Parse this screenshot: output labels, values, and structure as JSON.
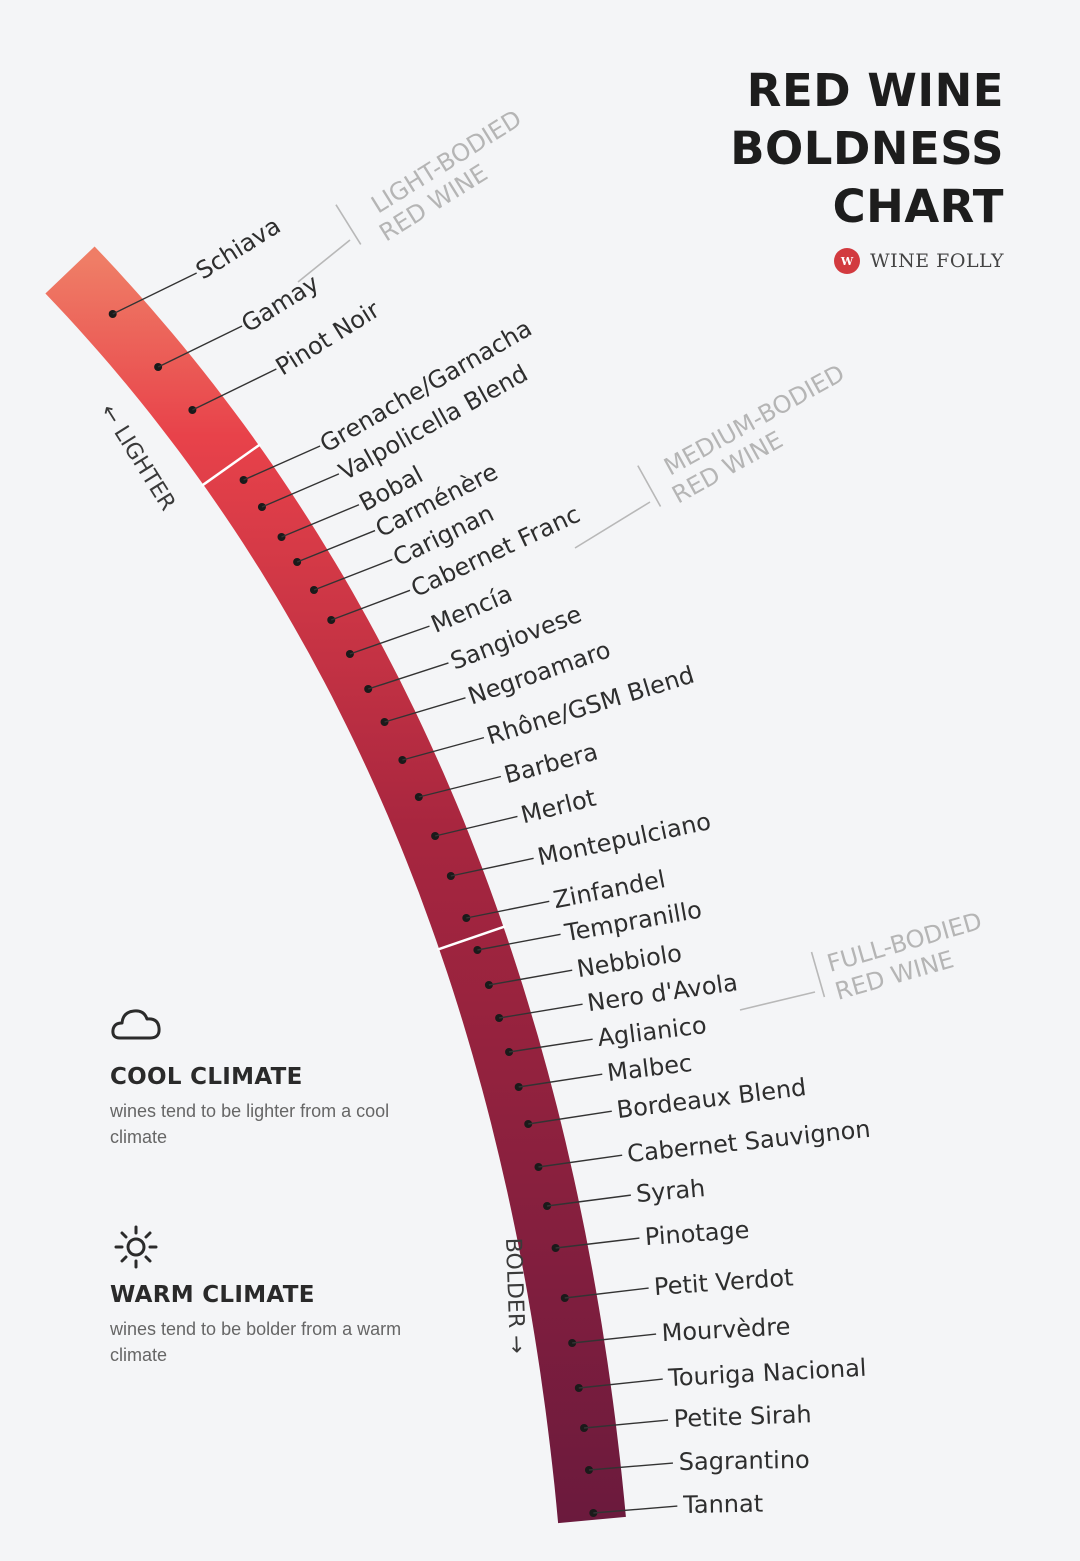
{
  "title": [
    "RED WINE",
    "BOLDNESS",
    "CHART"
  ],
  "brand": {
    "logo_text": "W",
    "name": "WINE FOLLY"
  },
  "direction": {
    "lighter": "← LIGHTER",
    "bolder": "BOLDER →"
  },
  "body_groups": [
    {
      "line1": "LIGHT-BODIED",
      "line2": "RED WINE"
    },
    {
      "line1": "MEDIUM-BODIED",
      "line2": "RED WINE"
    },
    {
      "line1": "FULL-BODIED",
      "line2": "RED WINE"
    }
  ],
  "wines": [
    "Schiava",
    "Gamay",
    "Pinot Noir",
    "Grenache/Garnacha",
    "Valpolicella Blend",
    "Bobal",
    "Carménère",
    "Carignan",
    "Cabernet Franc",
    "Mencía",
    "Sangiovese",
    "Negroamaro",
    "Rhône/GSM Blend",
    "Barbera",
    "Merlot",
    "Montepulciano",
    "Zinfandel",
    "Tempranillo",
    "Nebbiolo",
    "Nero d'Avola",
    "Aglianico",
    "Malbec",
    "Bordeaux Blend",
    "Cabernet Sauvignon",
    "Syrah",
    "Pinotage",
    "Petit Verdot",
    "Mourvèdre",
    "Touriga Nacional",
    "Petite Sirah",
    "Sagrantino",
    "Tannat"
  ],
  "colors": {
    "light": "#ec7a64",
    "medium": "#c52f45",
    "bold": "#6e1b3e",
    "background": "#f4f5f7"
  },
  "cool_climate": {
    "icon": "cloud-icon",
    "title": "COOL CLIMATE",
    "desc": "wines tend to be lighter from a cool climate"
  },
  "warm_climate": {
    "icon": "sun-icon",
    "title": "WARM CLIMATE",
    "desc": "wines tend to be bolder from a warm climate"
  }
}
